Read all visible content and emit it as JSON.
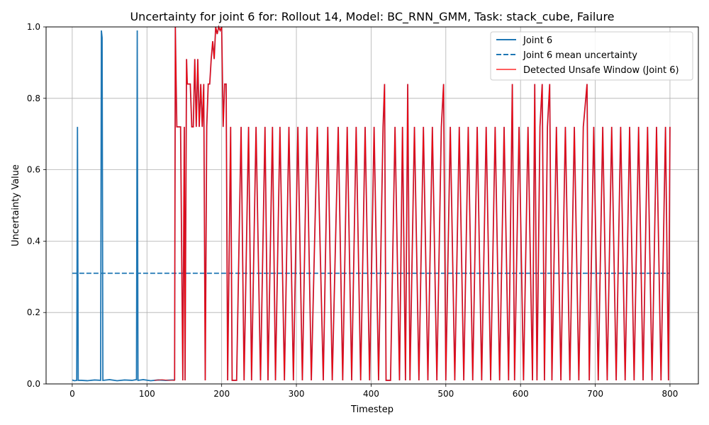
{
  "chart_data": {
    "type": "line",
    "title": "Uncertainty for joint 6 for: Rollout 14, Model: BC_RNN_GMM, Task: stack_cube, Failure",
    "xlabel": "Timestep",
    "ylabel": "Uncertainty Value",
    "xlim": [
      -35,
      838
    ],
    "ylim": [
      0,
      1.0
    ],
    "xticks": [
      0,
      100,
      200,
      300,
      400,
      500,
      600,
      700,
      800
    ],
    "yticks": [
      0.0,
      0.2,
      0.4,
      0.6,
      0.8,
      1.0
    ],
    "xtick_labels": [
      "0",
      "100",
      "200",
      "300",
      "400",
      "500",
      "600",
      "700",
      "800"
    ],
    "ytick_labels": [
      "0.0",
      "0.2",
      "0.4",
      "0.6",
      "0.8",
      "1.0"
    ],
    "grid": true,
    "legend_position": "top-right",
    "colors": {
      "joint": "#1f77b4",
      "unsafe": "#ff0000",
      "overlap": "#9b2a55"
    },
    "series": [
      {
        "name": "Joint 6",
        "style": "solid",
        "color": "#1f77b4",
        "points": [
          [
            0,
            0.011
          ],
          [
            3,
            0.009
          ],
          [
            6,
            0.01
          ],
          [
            7,
            0.72
          ],
          [
            8,
            0.01
          ],
          [
            12,
            0.01
          ],
          [
            20,
            0.009
          ],
          [
            30,
            0.011
          ],
          [
            38,
            0.01
          ],
          [
            39,
            0.99
          ],
          [
            40,
            0.97
          ],
          [
            41,
            0.01
          ],
          [
            50,
            0.012
          ],
          [
            60,
            0.009
          ],
          [
            70,
            0.011
          ],
          [
            80,
            0.01
          ],
          [
            86,
            0.012
          ],
          [
            87,
            0.99
          ],
          [
            88,
            0.01
          ],
          [
            95,
            0.012
          ],
          [
            105,
            0.009
          ],
          [
            115,
            0.011
          ],
          [
            125,
            0.01
          ],
          [
            135,
            0.011
          ],
          [
            137,
            0.01
          ]
        ]
      },
      {
        "name": "Joint 6 mean uncertainty",
        "style": "dashed",
        "color": "#1f77b4",
        "points": [
          [
            0,
            0.31
          ],
          [
            800,
            0.31
          ]
        ]
      },
      {
        "name": "Detected Unsafe Window (Joint 6)",
        "style": "solid",
        "color": "#ff0000",
        "points": [
          [
            110,
            0.01
          ],
          [
            120,
            0.012
          ],
          [
            130,
            0.01
          ],
          [
            137,
            0.01
          ],
          [
            138,
            1.0
          ],
          [
            139,
            0.85
          ],
          [
            140,
            0.72
          ],
          [
            145,
            0.72
          ],
          [
            148,
            0.01
          ],
          [
            150,
            0.72
          ],
          [
            151,
            0.01
          ],
          [
            153,
            0.91
          ],
          [
            154,
            0.84
          ],
          [
            158,
            0.84
          ],
          [
            160,
            0.72
          ],
          [
            162,
            0.72
          ],
          [
            164,
            0.91
          ],
          [
            166,
            0.72
          ],
          [
            168,
            0.91
          ],
          [
            170,
            0.72
          ],
          [
            172,
            0.84
          ],
          [
            174,
            0.72
          ],
          [
            176,
            0.84
          ],
          [
            178,
            0.01
          ],
          [
            180,
            0.72
          ],
          [
            182,
            0.84
          ],
          [
            184,
            0.84
          ],
          [
            186,
            0.91
          ],
          [
            188,
            0.96
          ],
          [
            190,
            0.91
          ],
          [
            192,
            1.0
          ],
          [
            194,
            0.98
          ],
          [
            196,
            1.0
          ],
          [
            198,
            0.99
          ],
          [
            200,
            1.0
          ],
          [
            202,
            0.72
          ],
          [
            204,
            0.84
          ],
          [
            206,
            0.84
          ],
          [
            208,
            0.01
          ],
          [
            212,
            0.72
          ],
          [
            214,
            0.01
          ],
          [
            220,
            0.01
          ],
          [
            226,
            0.72
          ],
          [
            230,
            0.01
          ],
          [
            236,
            0.72
          ],
          [
            240,
            0.01
          ],
          [
            246,
            0.72
          ],
          [
            252,
            0.01
          ],
          [
            258,
            0.72
          ],
          [
            262,
            0.01
          ],
          [
            268,
            0.72
          ],
          [
            272,
            0.01
          ],
          [
            278,
            0.72
          ],
          [
            284,
            0.01
          ],
          [
            290,
            0.72
          ],
          [
            296,
            0.01
          ],
          [
            302,
            0.72
          ],
          [
            308,
            0.01
          ],
          [
            314,
            0.72
          ],
          [
            320,
            0.01
          ],
          [
            328,
            0.72
          ],
          [
            336,
            0.01
          ],
          [
            342,
            0.72
          ],
          [
            348,
            0.01
          ],
          [
            356,
            0.72
          ],
          [
            362,
            0.01
          ],
          [
            368,
            0.72
          ],
          [
            374,
            0.01
          ],
          [
            380,
            0.72
          ],
          [
            386,
            0.01
          ],
          [
            392,
            0.72
          ],
          [
            398,
            0.01
          ],
          [
            404,
            0.72
          ],
          [
            410,
            0.01
          ],
          [
            416,
            0.72
          ],
          [
            418,
            0.84
          ],
          [
            420,
            0.01
          ],
          [
            426,
            0.01
          ],
          [
            432,
            0.72
          ],
          [
            438,
            0.01
          ],
          [
            442,
            0.72
          ],
          [
            446,
            0.01
          ],
          [
            449,
            0.84
          ],
          [
            452,
            0.01
          ],
          [
            458,
            0.72
          ],
          [
            464,
            0.01
          ],
          [
            470,
            0.72
          ],
          [
            476,
            0.01
          ],
          [
            482,
            0.72
          ],
          [
            488,
            0.01
          ],
          [
            494,
            0.72
          ],
          [
            497,
            0.84
          ],
          [
            500,
            0.01
          ],
          [
            506,
            0.72
          ],
          [
            512,
            0.01
          ],
          [
            518,
            0.72
          ],
          [
            524,
            0.01
          ],
          [
            530,
            0.72
          ],
          [
            536,
            0.01
          ],
          [
            542,
            0.72
          ],
          [
            548,
            0.01
          ],
          [
            554,
            0.72
          ],
          [
            560,
            0.01
          ],
          [
            566,
            0.72
          ],
          [
            572,
            0.01
          ],
          [
            578,
            0.72
          ],
          [
            584,
            0.01
          ],
          [
            589,
            0.84
          ],
          [
            592,
            0.01
          ],
          [
            598,
            0.72
          ],
          [
            604,
            0.01
          ],
          [
            610,
            0.72
          ],
          [
            616,
            0.01
          ],
          [
            619,
            0.84
          ],
          [
            622,
            0.01
          ],
          [
            626,
            0.72
          ],
          [
            629,
            0.84
          ],
          [
            632,
            0.01
          ],
          [
            636,
            0.72
          ],
          [
            639,
            0.84
          ],
          [
            642,
            0.01
          ],
          [
            648,
            0.72
          ],
          [
            654,
            0.01
          ],
          [
            660,
            0.72
          ],
          [
            666,
            0.01
          ],
          [
            672,
            0.72
          ],
          [
            678,
            0.01
          ],
          [
            684,
            0.72
          ],
          [
            689,
            0.84
          ],
          [
            692,
            0.01
          ],
          [
            698,
            0.72
          ],
          [
            704,
            0.01
          ],
          [
            710,
            0.72
          ],
          [
            716,
            0.01
          ],
          [
            722,
            0.72
          ],
          [
            728,
            0.01
          ],
          [
            734,
            0.72
          ],
          [
            740,
            0.01
          ],
          [
            746,
            0.72
          ],
          [
            752,
            0.01
          ],
          [
            758,
            0.72
          ],
          [
            764,
            0.01
          ],
          [
            770,
            0.72
          ],
          [
            776,
            0.01
          ],
          [
            782,
            0.72
          ],
          [
            788,
            0.01
          ],
          [
            794,
            0.72
          ],
          [
            798,
            0.01
          ],
          [
            800,
            0.72
          ]
        ]
      }
    ]
  }
}
